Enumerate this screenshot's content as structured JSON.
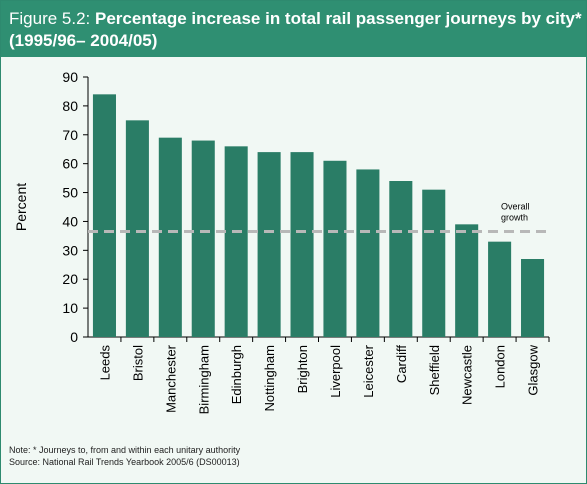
{
  "header": {
    "figure_label": "Figure 5.2: ",
    "title": "Percentage increase in total rail passenger journeys by city* (1995/96– 2004/05)"
  },
  "chart_data": {
    "type": "bar",
    "categories": [
      "Leeds",
      "Bristol",
      "Manchester",
      "Birmingham",
      "Edinburgh",
      "Nottingham",
      "Brighton",
      "Liverpool",
      "Leicester",
      "Cardiff",
      "Sheffield",
      "Newcastle",
      "London",
      "Glasgow"
    ],
    "values": [
      84,
      75,
      69,
      68,
      66,
      64,
      64,
      61,
      58,
      54,
      51,
      39,
      33,
      27
    ],
    "ylabel": "Percent",
    "xlabel": "",
    "ylim": [
      0,
      90
    ],
    "yticks": [
      0,
      10,
      20,
      30,
      40,
      50,
      60,
      70,
      80,
      90
    ],
    "grid": false,
    "bar_color": "#2a7d66",
    "reference_line": {
      "value": 36.5,
      "label_lines": [
        "Overall",
        "growth"
      ],
      "color": "#b8b8b8"
    }
  },
  "notes": {
    "note": "Note: * Journeys to, from and within each unitary authority",
    "source": "Source: National Rail Trends Yearbook 2005/6 (DS00013)"
  }
}
